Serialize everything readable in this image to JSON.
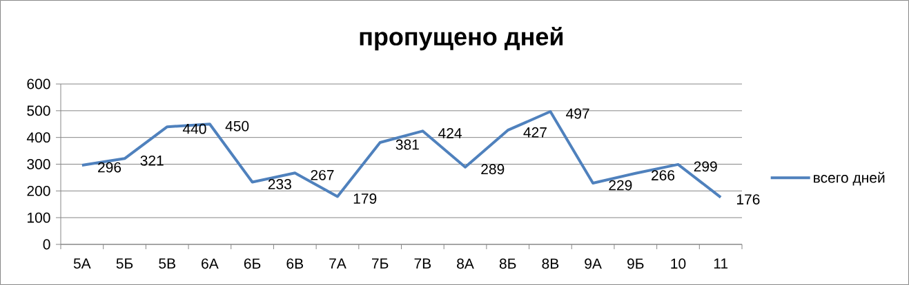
{
  "chart_data": {
    "type": "line",
    "title": "пропущено дней",
    "categories": [
      "5А",
      "5Б",
      "5В",
      "6А",
      "6Б",
      "6В",
      "7А",
      "7Б",
      "7В",
      "8А",
      "8Б",
      "8В",
      "9А",
      "9Б",
      "10",
      "11"
    ],
    "series": [
      {
        "name": "всего дней",
        "color": "#4f81bd",
        "values": [
          296,
          321,
          440,
          450,
          233,
          267,
          179,
          381,
          424,
          289,
          427,
          497,
          229,
          266,
          299,
          176
        ]
      }
    ],
    "ylim": [
      0,
      600
    ],
    "yticks": [
      0,
      100,
      200,
      300,
      400,
      500,
      600
    ],
    "grid": "y",
    "legend": "right",
    "data_labels": true,
    "marker": "none",
    "line_style": "solid"
  }
}
